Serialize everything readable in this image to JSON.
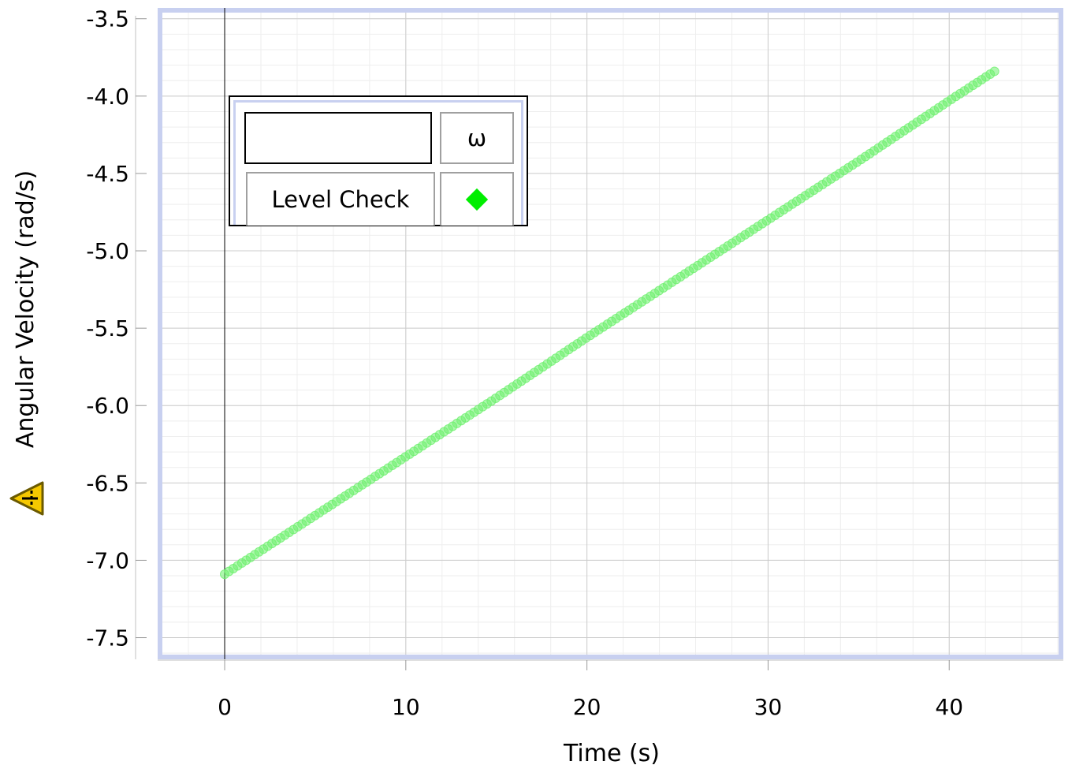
{
  "chart_data": {
    "type": "scatter",
    "title": "",
    "xlabel": "Time (s)",
    "ylabel": "Angular Velocity (rad/s)",
    "xlim": [
      -3.7,
      46.3
    ],
    "ylim": [
      -7.64,
      -3.43
    ],
    "x_ticks": [
      "0",
      "10",
      "20",
      "30",
      "40"
    ],
    "x_tick_values": [
      0,
      10,
      20,
      30,
      40
    ],
    "y_ticks": [
      "-3.5",
      "-4.0",
      "-4.5",
      "-5.0",
      "-5.5",
      "-6.0",
      "-6.5",
      "-7.0",
      "-7.5"
    ],
    "y_tick_values": [
      -3.5,
      -4.0,
      -4.5,
      -5.0,
      -5.5,
      -6.0,
      -6.5,
      -7.0,
      -7.5
    ],
    "grid": true,
    "legend_position": "top-left",
    "series": [
      {
        "name": "Level Check",
        "color": "#6ef06e",
        "marker": "circle",
        "x": [
          0,
          5,
          10,
          15,
          20,
          25,
          30,
          35,
          40,
          42.5
        ],
        "y": [
          -7.09,
          -6.71,
          -6.33,
          -5.95,
          -5.56,
          -5.18,
          -4.8,
          -4.42,
          -4.03,
          -3.84
        ]
      }
    ],
    "legend": {
      "name_header": "",
      "symbol_header": "ω",
      "marker_color": "#00ee00"
    }
  },
  "icons": {
    "warning": "warning-triangle-icon"
  }
}
